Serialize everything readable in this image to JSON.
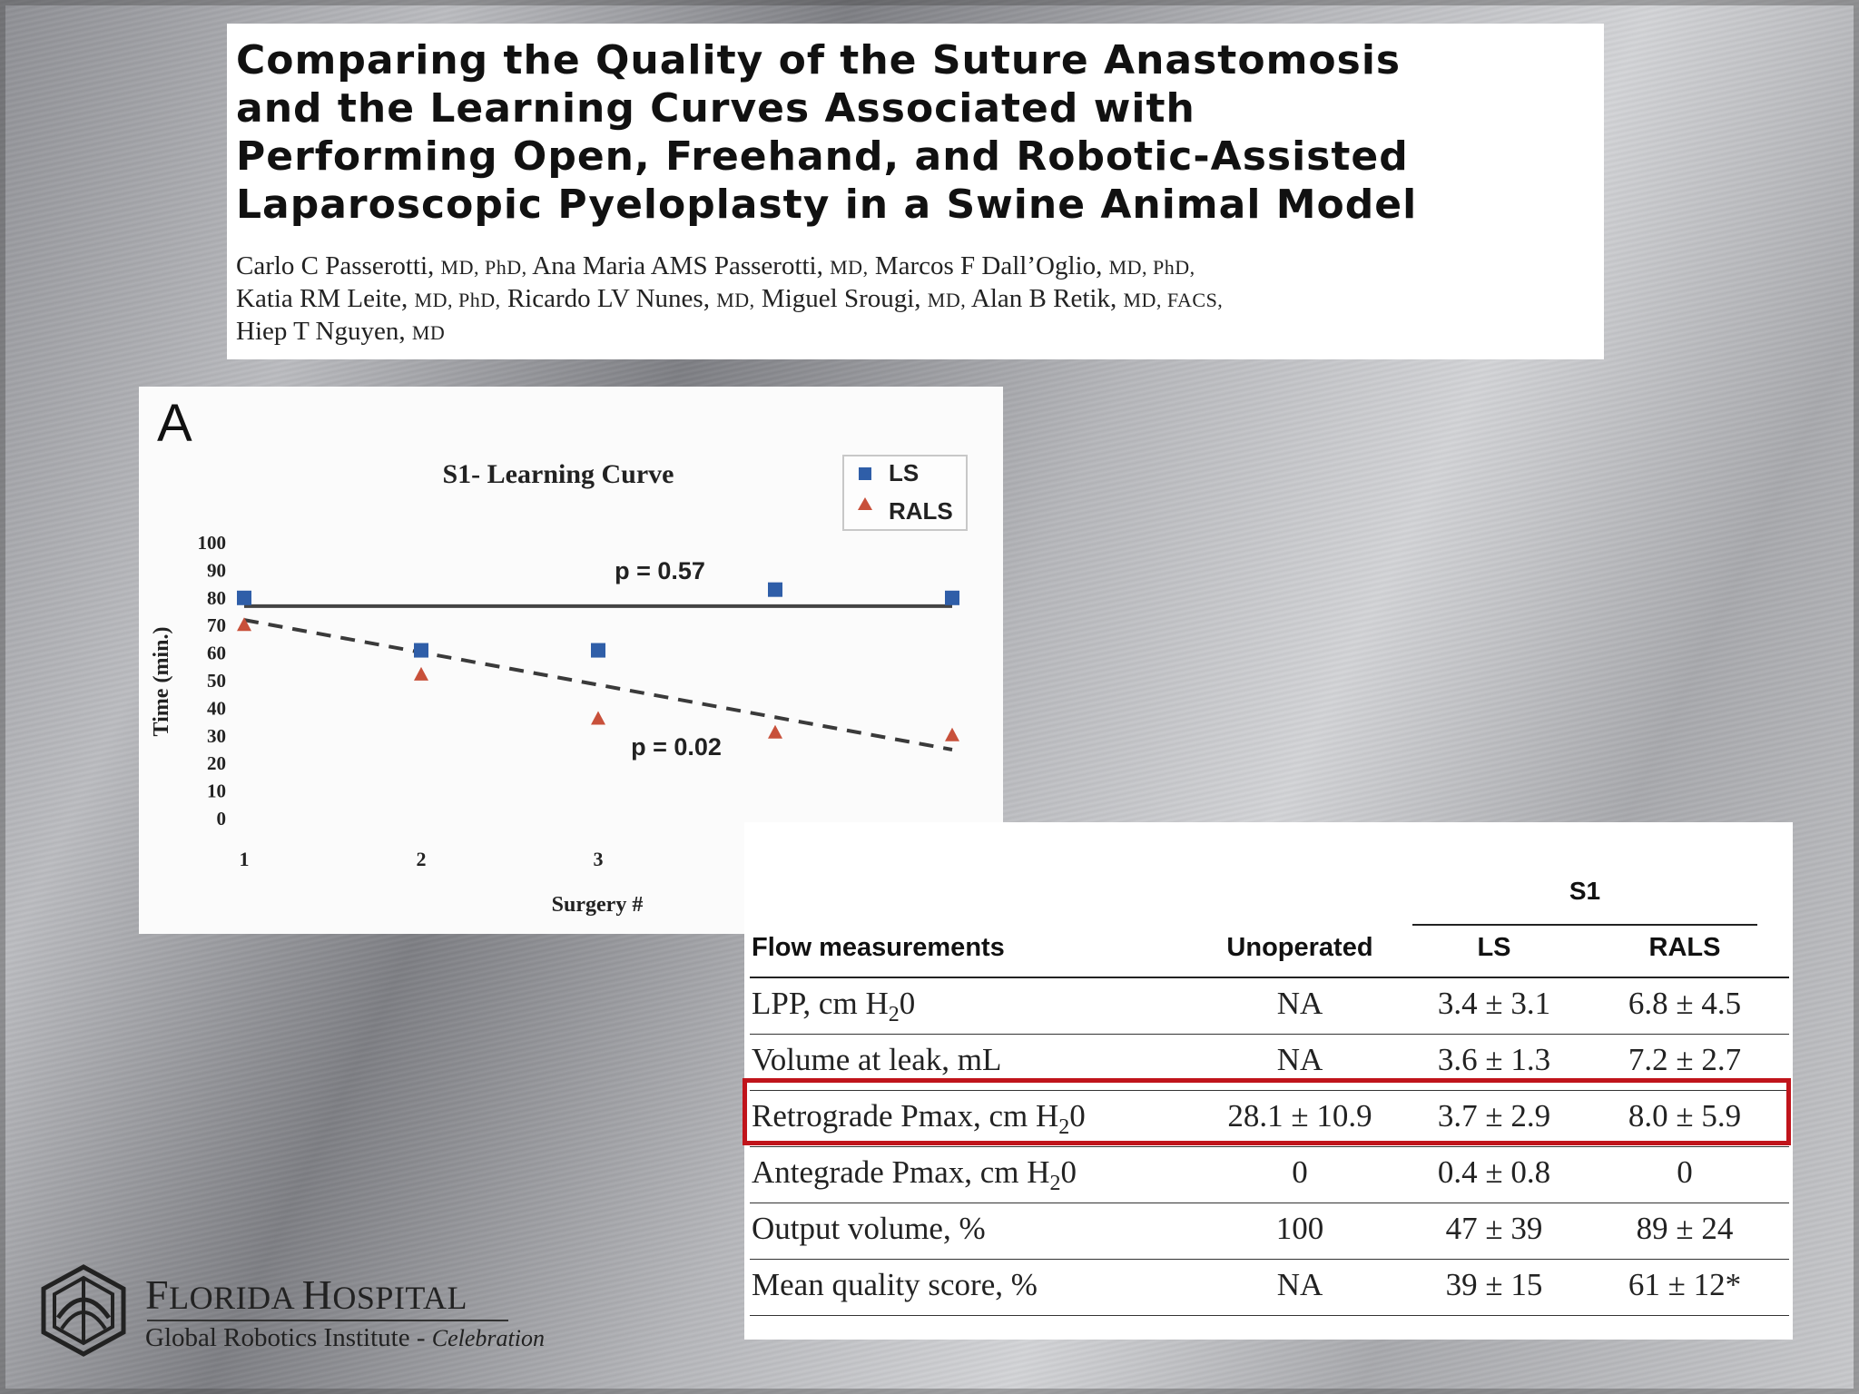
{
  "title": "Comparing the Quality of the Suture Anastomosis and the Learning Curves Associated with Performing Open, Freehand, and Robotic-Assisted Laparoscopic Pyeloplasty in a Swine Animal Model",
  "title_lines": [
    "Comparing the Quality of the Suture Anastomosis",
    "and the Learning Curves Associated with",
    "Performing Open, Freehand, and Robotic-Assisted",
    "Laparoscopic Pyeloplasty in a Swine Animal Model"
  ],
  "authors": [
    {
      "name": "Carlo C Passerotti,",
      "deg": "MD, PhD,"
    },
    {
      "name": "Ana Maria AMS Passerotti,",
      "deg": "MD,"
    },
    {
      "name": "Marcos F Dall’Oglio,",
      "deg": "MD, PhD,"
    },
    {
      "name": "Katia RM Leite,",
      "deg": "MD, PhD,"
    },
    {
      "name": "Ricardo LV Nunes,",
      "deg": "MD,"
    },
    {
      "name": "Miguel Srougi,",
      "deg": "MD,"
    },
    {
      "name": "Alan B Retik,",
      "deg": "MD, FACS,"
    },
    {
      "name": "Hiep T Nguyen,",
      "deg": "MD"
    }
  ],
  "chart_data": {
    "type": "scatter",
    "panel_label": "A",
    "title": "S1- Learning Curve",
    "xlabel": "Surgery #",
    "ylabel": "Time (min.)",
    "x": [
      1,
      2,
      3,
      4,
      5
    ],
    "xlim": [
      1,
      5
    ],
    "ylim": [
      0,
      100
    ],
    "yticks": [
      0,
      10,
      20,
      30,
      40,
      50,
      60,
      70,
      80,
      90,
      100
    ],
    "legend_position": "top-right",
    "series": [
      {
        "name": "LS",
        "marker": "square",
        "color": "#2f5ea8",
        "values": [
          80,
          61,
          61,
          83,
          80
        ]
      },
      {
        "name": "RALS",
        "marker": "triangle",
        "color": "#c8503a",
        "values": [
          70,
          52,
          36,
          31,
          30
        ]
      }
    ],
    "trendlines": [
      {
        "series": "LS",
        "style": "solid",
        "x": [
          1,
          5
        ],
        "y": [
          77,
          77
        ],
        "label": "p = 0.57"
      },
      {
        "series": "RALS",
        "style": "dashed",
        "x": [
          1,
          5
        ],
        "y": [
          72,
          25
        ],
        "label": "p = 0.02"
      }
    ]
  },
  "table": {
    "group_header": "S1",
    "headers": [
      "Flow measurements",
      "Unoperated",
      "LS",
      "RALS"
    ],
    "rows": [
      {
        "label": "LPP, cm H",
        "sub": "2",
        "suffix": "0",
        "cells": [
          "NA",
          "3.4 ± 3.1",
          "6.8 ± 4.5"
        ]
      },
      {
        "label": "Volume at leak, mL",
        "sub": "",
        "suffix": "",
        "cells": [
          "NA",
          "3.6 ± 1.3",
          "7.2 ± 2.7"
        ]
      },
      {
        "label": "Retrograde Pmax, cm H",
        "sub": "2",
        "suffix": "0",
        "cells": [
          "28.1 ± 10.9",
          "3.7 ± 2.9",
          "8.0 ± 5.9"
        ]
      },
      {
        "label": "Antegrade Pmax, cm H",
        "sub": "2",
        "suffix": "0",
        "cells": [
          "0",
          "0.4 ± 0.8",
          "0"
        ]
      },
      {
        "label": "Output volume, %",
        "sub": "",
        "suffix": "",
        "cells": [
          "100",
          "47 ± 39",
          "89 ± 24"
        ]
      },
      {
        "label": "Mean quality score, %",
        "sub": "",
        "suffix": "",
        "cells": [
          "NA",
          "39 ± 15",
          "61 ± 12*"
        ]
      }
    ],
    "highlighted_row": 2,
    "highlight_color": "#c0141b"
  },
  "logo": {
    "name": "Florida Hospital",
    "name_display": [
      "F",
      "LORIDA ",
      "H",
      "OSPITAL"
    ],
    "subtitle": "Global Robotics Institute - ",
    "subtitle_italic": "Celebration"
  }
}
